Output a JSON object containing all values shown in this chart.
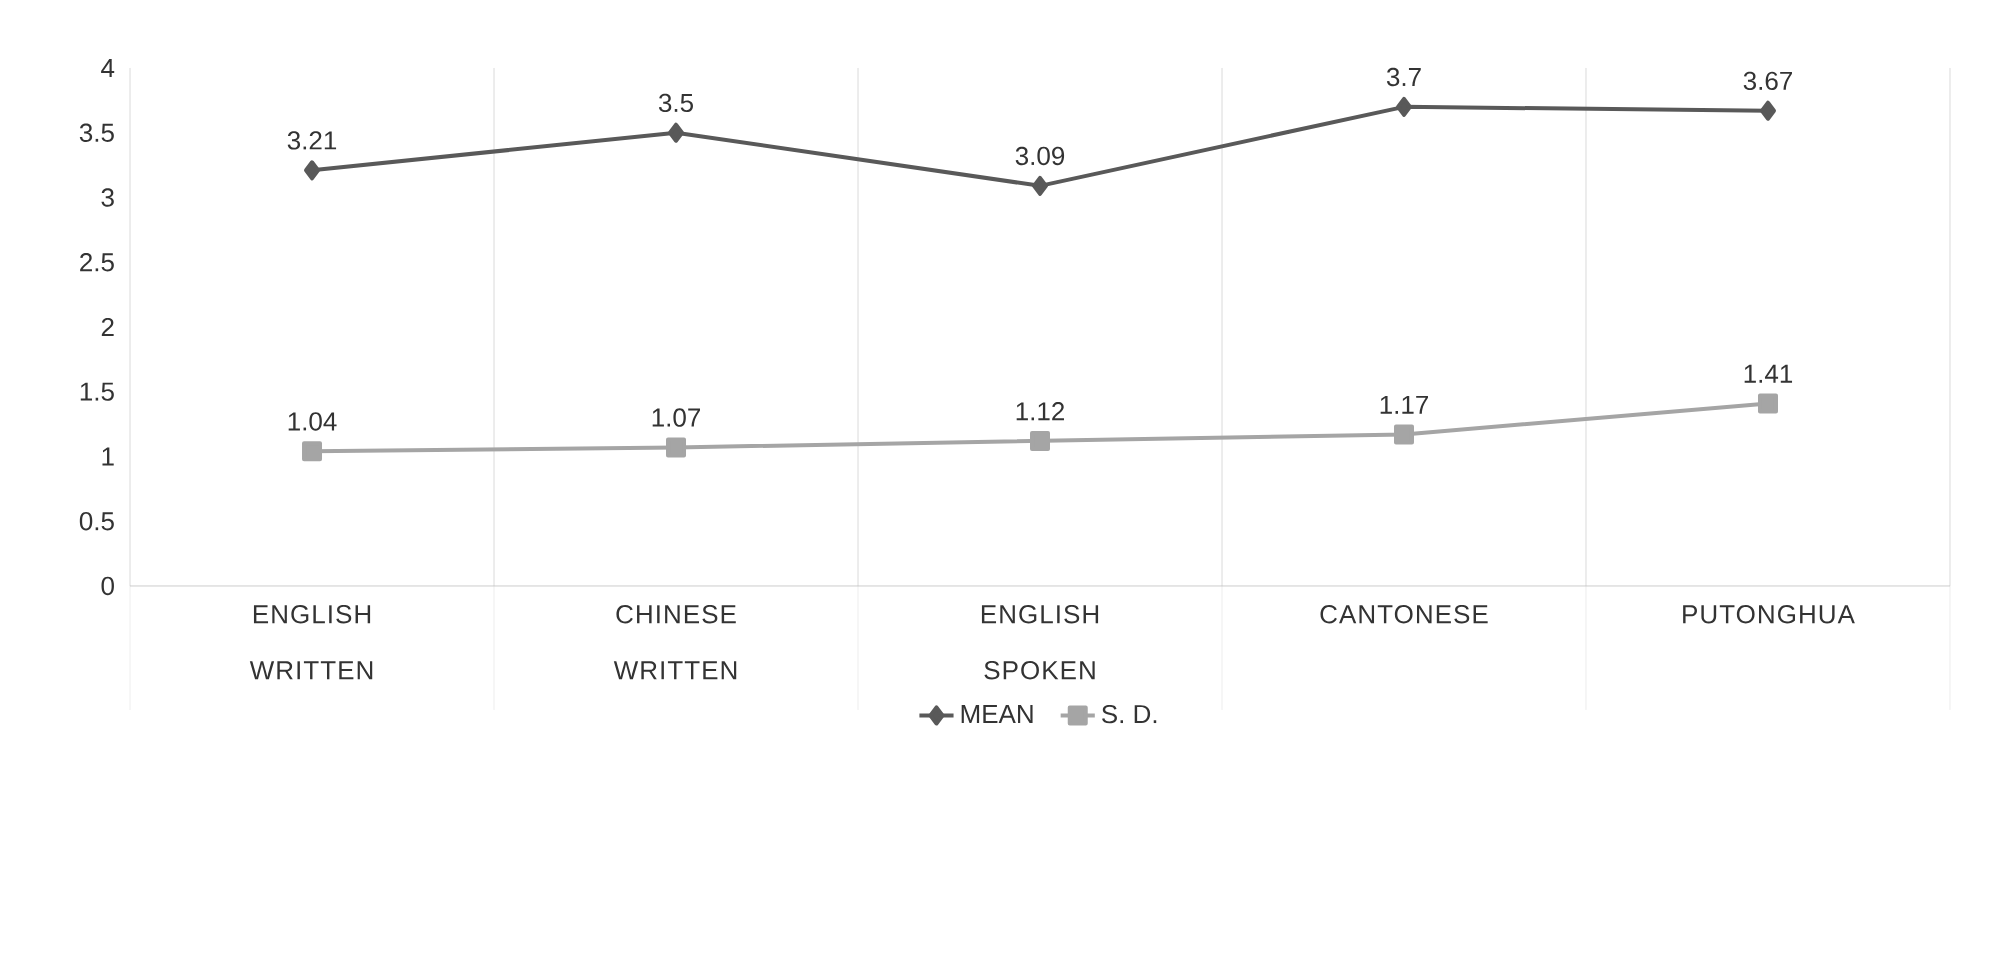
{
  "chart_data": {
    "type": "line",
    "categories": [
      "ENGLISH WRITTEN",
      "CHINESE WRITTEN",
      "ENGLISH SPOKEN",
      "CANTONESE",
      "PUTONGHUA"
    ],
    "series": [
      {
        "name": "MEAN",
        "color": "#595959",
        "marker": "diamond",
        "values": [
          3.21,
          3.5,
          3.09,
          3.7,
          3.67
        ]
      },
      {
        "name": "S. D.",
        "color": "#a5a5a5",
        "marker": "square",
        "values": [
          1.04,
          1.07,
          1.12,
          1.17,
          1.41
        ]
      }
    ],
    "ylim": [
      0,
      4
    ],
    "yticks": [
      0,
      0.5,
      1,
      1.5,
      2,
      2.5,
      3,
      3.5,
      4
    ],
    "grid": "x",
    "legend": "bottom",
    "data_labels": true,
    "line_style": "solid"
  }
}
